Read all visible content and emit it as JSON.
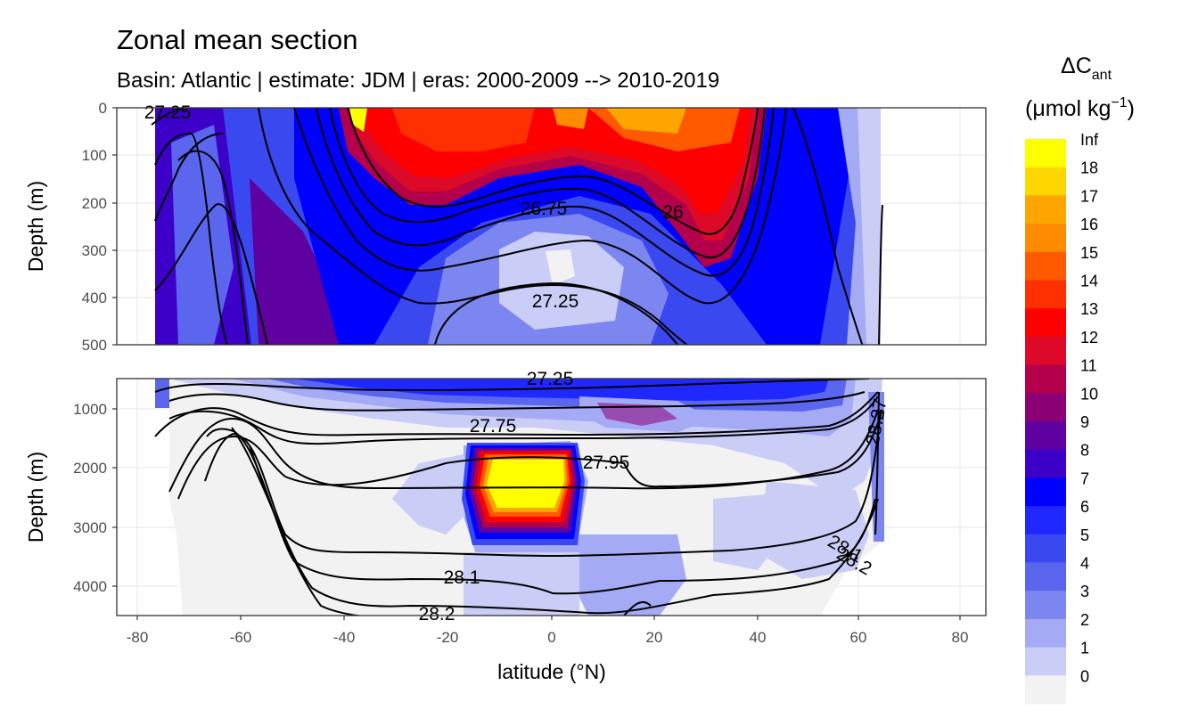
{
  "chart_data": {
    "type": "heatmap",
    "title": "Zonal mean section",
    "subtitle": "Basin: Atlantic | estimate: JDM  | eras: 2000-2009 --> 2010-2019",
    "xlabel": "latitude (°N)",
    "ylabel": "Depth (m)",
    "x_ticks": [
      "-80",
      "-60",
      "-40",
      "-20",
      "0",
      "20",
      "40",
      "60",
      "80"
    ],
    "xlim": [
      -85,
      85
    ],
    "panels": [
      {
        "ylim": [
          0,
          500
        ],
        "y_ticks": [
          "0",
          "100",
          "200",
          "300",
          "400",
          "500"
        ]
      },
      {
        "ylim": [
          500,
          4500
        ],
        "y_ticks": [
          "1000",
          "2000",
          "3000",
          "4000"
        ]
      }
    ],
    "legend": {
      "title_main": "ΔC",
      "title_sub": "ant",
      "units": "(μmol kg",
      "units_exp": "−1",
      "units_close": ")",
      "labels": [
        "Inf",
        "18",
        "17",
        "16",
        "15",
        "14",
        "13",
        "12",
        "11",
        "10",
        "9",
        "8",
        "7",
        "6",
        "5",
        "4",
        "3",
        "2",
        "1",
        "0"
      ],
      "colors": [
        "#ffff00",
        "#ffd700",
        "#ffa500",
        "#ff8c00",
        "#ff5a00",
        "#ff3000",
        "#ff0000",
        "#dc0a28",
        "#b4004a",
        "#8c0076",
        "#5f00a0",
        "#3c00c8",
        "#0000ff",
        "#1e28ff",
        "#3a48f0",
        "#5a66ee",
        "#7c86f0",
        "#a4aaf4",
        "#cacdf6",
        "#f2f2f2"
      ]
    },
    "contour_labels": [
      "27.25",
      "26.75",
      "26",
      "27.25",
      "27.25",
      "27.75",
      "27.95",
      "28.1",
      "28.2",
      "28.1",
      "28.2",
      "28.27"
    ]
  }
}
